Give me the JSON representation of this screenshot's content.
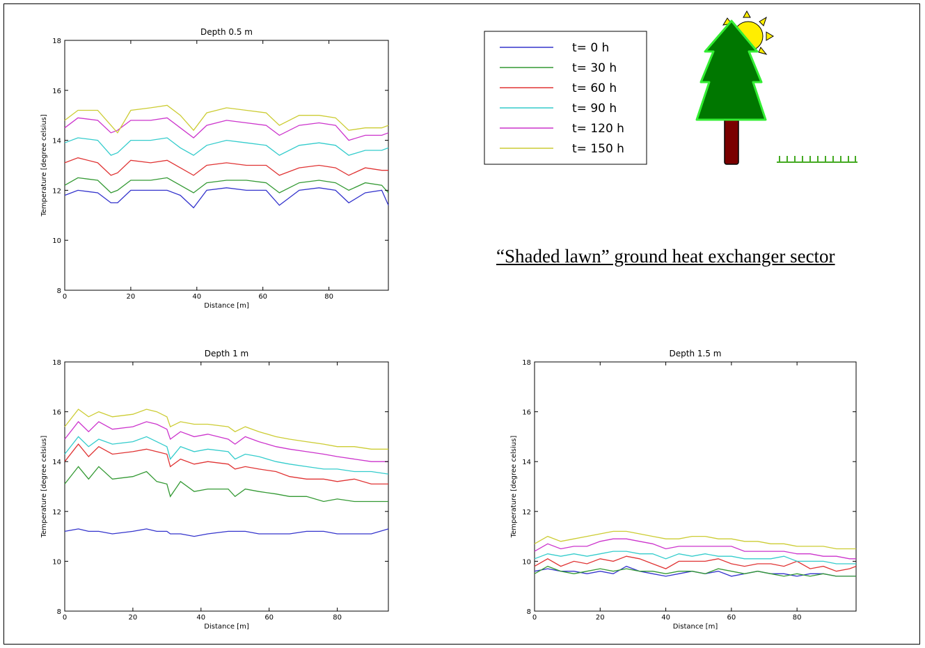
{
  "caption": "“Shaded lawn” ground heat exchanger sector",
  "colors": {
    "t0": "#3333cc",
    "t30": "#339933",
    "t60": "#e03333",
    "t90": "#33cccc",
    "t120": "#cc33cc",
    "t150": "#cccc33",
    "tree_green": "#007700",
    "tree_outline": "#33ee33",
    "trunk": "#7a0000",
    "sun": "#ffee00",
    "grass": "#44aa22"
  },
  "icons": [
    "sun-icon",
    "tree-icon",
    "grass-icon"
  ],
  "chart_data": [
    {
      "type": "line",
      "title": "Depth 0.5 m",
      "xlabel": "Distance [m]",
      "ylabel": "Temperature [degree celsius]",
      "xlim": [
        0,
        98
      ],
      "ylim": [
        8,
        18
      ],
      "xticks": [
        0,
        20,
        40,
        60,
        80
      ],
      "yticks": [
        8,
        10,
        12,
        14,
        16,
        18
      ],
      "x": [
        0,
        4,
        10,
        14,
        16,
        20,
        26,
        31,
        35,
        39,
        43,
        49,
        55,
        61,
        65,
        71,
        77,
        82,
        86,
        91,
        96,
        98
      ],
      "series": [
        {
          "name": "t= 0 h",
          "values": [
            11.8,
            12.0,
            11.9,
            11.5,
            11.5,
            12.0,
            12.0,
            12.0,
            11.8,
            11.3,
            12.0,
            12.1,
            12.0,
            12.0,
            11.4,
            12.0,
            12.1,
            12.0,
            11.5,
            11.9,
            12.0,
            11.4
          ]
        },
        {
          "name": "t= 30 h",
          "values": [
            12.2,
            12.5,
            12.4,
            11.9,
            12.0,
            12.4,
            12.4,
            12.5,
            12.2,
            11.9,
            12.3,
            12.4,
            12.4,
            12.3,
            11.9,
            12.3,
            12.4,
            12.3,
            12.0,
            12.3,
            12.2,
            11.9
          ]
        },
        {
          "name": "t= 60 h",
          "values": [
            13.1,
            13.3,
            13.1,
            12.6,
            12.7,
            13.2,
            13.1,
            13.2,
            12.9,
            12.6,
            13.0,
            13.1,
            13.0,
            13.0,
            12.6,
            12.9,
            13.0,
            12.9,
            12.6,
            12.9,
            12.8,
            12.8
          ]
        },
        {
          "name": "t= 90 h",
          "values": [
            13.9,
            14.1,
            14.0,
            13.4,
            13.5,
            14.0,
            14.0,
            14.1,
            13.7,
            13.4,
            13.8,
            14.0,
            13.9,
            13.8,
            13.4,
            13.8,
            13.9,
            13.8,
            13.4,
            13.6,
            13.6,
            13.7
          ]
        },
        {
          "name": "t= 120 h",
          "values": [
            14.5,
            14.9,
            14.8,
            14.3,
            14.4,
            14.8,
            14.8,
            14.9,
            14.5,
            14.1,
            14.6,
            14.8,
            14.7,
            14.6,
            14.2,
            14.6,
            14.7,
            14.6,
            14.0,
            14.2,
            14.2,
            14.3
          ]
        },
        {
          "name": "t= 150 h",
          "values": [
            14.8,
            15.2,
            15.2,
            14.6,
            14.3,
            15.2,
            15.3,
            15.4,
            15.0,
            14.4,
            15.1,
            15.3,
            15.2,
            15.1,
            14.6,
            15.0,
            15.0,
            14.9,
            14.4,
            14.5,
            14.5,
            14.6
          ]
        }
      ]
    },
    {
      "type": "line",
      "title": "Depth 1 m",
      "xlabel": "Distance [m]",
      "ylabel": "Temperature [degree celsius]",
      "xlim": [
        0,
        95
      ],
      "ylim": [
        8,
        18
      ],
      "xticks": [
        0,
        20,
        40,
        60,
        80
      ],
      "yticks": [
        8,
        10,
        12,
        14,
        16,
        18
      ],
      "x": [
        0,
        4,
        7,
        10,
        14,
        20,
        24,
        27,
        30,
        31,
        34,
        38,
        42,
        48,
        50,
        53,
        57,
        62,
        66,
        71,
        76,
        80,
        85,
        90,
        95
      ],
      "series": [
        {
          "name": "t= 0 h",
          "values": [
            11.2,
            11.3,
            11.2,
            11.2,
            11.1,
            11.2,
            11.3,
            11.2,
            11.2,
            11.1,
            11.1,
            11.0,
            11.1,
            11.2,
            11.2,
            11.2,
            11.1,
            11.1,
            11.1,
            11.2,
            11.2,
            11.1,
            11.1,
            11.1,
            11.3
          ]
        },
        {
          "name": "t= 30 h",
          "values": [
            13.1,
            13.8,
            13.3,
            13.8,
            13.3,
            13.4,
            13.6,
            13.2,
            13.1,
            12.6,
            13.2,
            12.8,
            12.9,
            12.9,
            12.6,
            12.9,
            12.8,
            12.7,
            12.6,
            12.6,
            12.4,
            12.5,
            12.4,
            12.4,
            12.4
          ]
        },
        {
          "name": "t= 60 h",
          "values": [
            14.0,
            14.7,
            14.2,
            14.6,
            14.3,
            14.4,
            14.5,
            14.4,
            14.3,
            13.8,
            14.1,
            13.9,
            14.0,
            13.9,
            13.7,
            13.8,
            13.7,
            13.6,
            13.4,
            13.3,
            13.3,
            13.2,
            13.3,
            13.1,
            13.1
          ]
        },
        {
          "name": "t= 90 h",
          "values": [
            14.3,
            15.0,
            14.6,
            14.9,
            14.7,
            14.8,
            15.0,
            14.8,
            14.6,
            14.1,
            14.6,
            14.4,
            14.5,
            14.4,
            14.1,
            14.3,
            14.2,
            14.0,
            13.9,
            13.8,
            13.7,
            13.7,
            13.6,
            13.6,
            13.5
          ]
        },
        {
          "name": "t= 120 h",
          "values": [
            14.9,
            15.6,
            15.2,
            15.6,
            15.3,
            15.4,
            15.6,
            15.5,
            15.3,
            14.9,
            15.2,
            15.0,
            15.1,
            14.9,
            14.7,
            15.0,
            14.8,
            14.6,
            14.5,
            14.4,
            14.3,
            14.2,
            14.1,
            14.0,
            14.0
          ]
        },
        {
          "name": "t= 150 h",
          "values": [
            15.4,
            16.1,
            15.8,
            16.0,
            15.8,
            15.9,
            16.1,
            16.0,
            15.8,
            15.4,
            15.6,
            15.5,
            15.5,
            15.4,
            15.2,
            15.4,
            15.2,
            15.0,
            14.9,
            14.8,
            14.7,
            14.6,
            14.6,
            14.5,
            14.5
          ]
        }
      ]
    },
    {
      "type": "line",
      "title": "Depth 1.5 m",
      "xlabel": "Distance [m]",
      "ylabel": "Temperature [degree celsius]",
      "xlim": [
        0,
        98
      ],
      "ylim": [
        8,
        18
      ],
      "xticks": [
        0,
        20,
        40,
        60,
        80
      ],
      "yticks": [
        8,
        10,
        12,
        14,
        16,
        18
      ],
      "x": [
        0,
        4,
        8,
        12,
        16,
        20,
        24,
        28,
        32,
        36,
        40,
        44,
        48,
        52,
        56,
        60,
        64,
        68,
        72,
        76,
        80,
        84,
        88,
        92,
        96,
        98
      ],
      "series": [
        {
          "name": "t= 0 h",
          "values": [
            9.6,
            9.7,
            9.6,
            9.6,
            9.5,
            9.6,
            9.5,
            9.8,
            9.6,
            9.5,
            9.4,
            9.5,
            9.6,
            9.5,
            9.6,
            9.4,
            9.5,
            9.6,
            9.5,
            9.5,
            9.4,
            9.5,
            9.5,
            9.4,
            9.4,
            9.4
          ]
        },
        {
          "name": "t= 30 h",
          "values": [
            9.5,
            9.8,
            9.6,
            9.5,
            9.6,
            9.7,
            9.6,
            9.7,
            9.6,
            9.6,
            9.5,
            9.6,
            9.6,
            9.5,
            9.7,
            9.6,
            9.5,
            9.6,
            9.5,
            9.4,
            9.5,
            9.4,
            9.5,
            9.4,
            9.4,
            9.4
          ]
        },
        {
          "name": "t= 60 h",
          "values": [
            9.8,
            10.1,
            9.8,
            10.0,
            9.9,
            10.1,
            10.0,
            10.2,
            10.1,
            9.9,
            9.7,
            10.0,
            10.0,
            10.0,
            10.1,
            9.9,
            9.8,
            9.9,
            9.9,
            9.8,
            10.0,
            9.7,
            9.8,
            9.6,
            9.7,
            9.8
          ]
        },
        {
          "name": "t= 90 h",
          "values": [
            10.1,
            10.3,
            10.2,
            10.3,
            10.2,
            10.3,
            10.4,
            10.4,
            10.3,
            10.3,
            10.1,
            10.3,
            10.2,
            10.3,
            10.2,
            10.2,
            10.1,
            10.1,
            10.1,
            10.2,
            10.0,
            10.0,
            10.0,
            9.9,
            9.9,
            9.9
          ]
        },
        {
          "name": "t= 120 h",
          "values": [
            10.4,
            10.7,
            10.5,
            10.6,
            10.6,
            10.8,
            10.9,
            10.9,
            10.8,
            10.7,
            10.5,
            10.6,
            10.6,
            10.6,
            10.6,
            10.6,
            10.4,
            10.4,
            10.4,
            10.4,
            10.3,
            10.3,
            10.2,
            10.2,
            10.1,
            10.1
          ]
        },
        {
          "name": "t= 150 h",
          "values": [
            10.7,
            11.0,
            10.8,
            10.9,
            11.0,
            11.1,
            11.2,
            11.2,
            11.1,
            11.0,
            10.9,
            10.9,
            11.0,
            11.0,
            10.9,
            10.9,
            10.8,
            10.8,
            10.7,
            10.7,
            10.6,
            10.6,
            10.6,
            10.5,
            10.5,
            10.5
          ]
        }
      ]
    }
  ]
}
